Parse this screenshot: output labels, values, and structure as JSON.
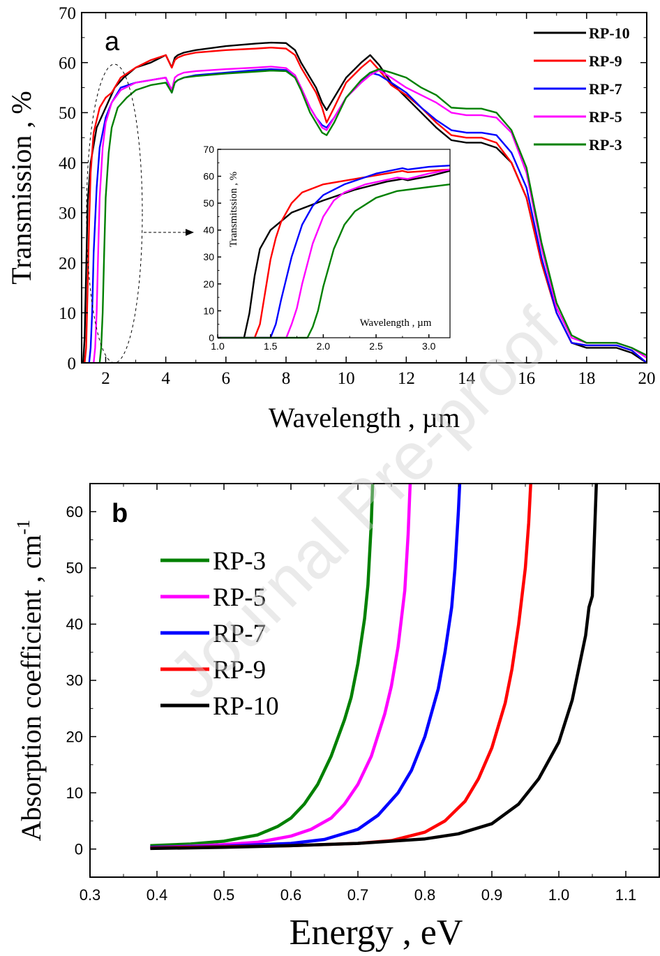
{
  "watermark": "Journal Pre-proof",
  "chart_data": [
    {
      "panel": "a",
      "type": "line",
      "xlabel": "Wavelength , µm",
      "ylabel": "Transmission , %",
      "xlim": [
        1.2,
        20
      ],
      "ylim": [
        0,
        70
      ],
      "xticks": [
        2,
        4,
        6,
        8,
        10,
        12,
        14,
        16,
        18,
        20
      ],
      "yticks": [
        0,
        10,
        20,
        30,
        40,
        50,
        60,
        70
      ],
      "grid": false,
      "legend_position": "top-right",
      "series": [
        {
          "name": "RP-10",
          "color": "#000000",
          "x": [
            1.25,
            1.3,
            1.35,
            1.4,
            1.5,
            1.7,
            2.0,
            2.3,
            2.6,
            3.0,
            3.5,
            4.0,
            4.2,
            4.3,
            4.4,
            4.6,
            5.0,
            6.0,
            7.0,
            7.5,
            8.0,
            8.3,
            8.5,
            8.8,
            9.0,
            9.2,
            9.35,
            9.6,
            10.0,
            10.5,
            10.8,
            11.1,
            11.5,
            12.0,
            12.5,
            13.0,
            13.5,
            14.0,
            14.5,
            15.0,
            15.5,
            16.0,
            16.5,
            17.0,
            17.5,
            18.0,
            18.5,
            19.0,
            19.5,
            20.0
          ],
          "y": [
            0,
            5,
            18,
            32,
            40,
            47,
            51,
            55,
            57,
            59,
            60,
            61.5,
            59,
            61,
            61.5,
            62,
            62.5,
            63.3,
            63.8,
            64.0,
            63.9,
            62.5,
            60,
            57,
            55,
            52,
            50.5,
            53,
            57,
            60,
            61.5,
            59.5,
            56,
            53,
            50,
            47,
            44.5,
            44,
            44,
            43,
            40,
            33,
            20,
            10,
            4,
            3,
            3,
            3,
            2,
            0
          ]
        },
        {
          "name": "RP-9",
          "color": "#ff0000",
          "x": [
            1.3,
            1.35,
            1.4,
            1.45,
            1.5,
            1.6,
            1.8,
            2.0,
            2.2,
            2.5,
            3.0,
            3.5,
            4.0,
            4.2,
            4.3,
            4.4,
            4.6,
            5.0,
            6.0,
            7.0,
            7.5,
            8.0,
            8.3,
            8.5,
            8.8,
            9.0,
            9.2,
            9.35,
            9.6,
            10.0,
            10.5,
            10.8,
            11.1,
            11.5,
            12.0,
            12.5,
            13.0,
            13.5,
            14.0,
            14.5,
            15.0,
            15.5,
            16.0,
            16.5,
            17.0,
            17.5,
            18.0,
            18.5,
            19.0,
            19.5,
            20.0
          ],
          "y": [
            0,
            3,
            15,
            28,
            38,
            46,
            51,
            53,
            54,
            57,
            59,
            60.5,
            61.5,
            59,
            60.5,
            61,
            61.5,
            62,
            62.5,
            62.8,
            63.0,
            62.8,
            61.5,
            59,
            56,
            54,
            51,
            48,
            51,
            56,
            59,
            60.5,
            58.5,
            55.5,
            53.5,
            51,
            48,
            45.5,
            45,
            45,
            44,
            40,
            33,
            20,
            10,
            4,
            3.5,
            3.5,
            3.5,
            2.5,
            0
          ]
        },
        {
          "name": "RP-7",
          "color": "#0000ff",
          "x": [
            1.45,
            1.5,
            1.55,
            1.6,
            1.7,
            1.8,
            2.0,
            2.2,
            2.5,
            3.0,
            3.5,
            4.0,
            4.2,
            4.3,
            4.4,
            4.6,
            5.0,
            6.0,
            7.0,
            7.5,
            8.0,
            8.3,
            8.5,
            8.8,
            9.0,
            9.2,
            9.35,
            9.6,
            10.0,
            10.5,
            10.8,
            11.1,
            11.5,
            12.0,
            12.5,
            13.0,
            13.5,
            14.0,
            14.5,
            15.0,
            15.5,
            16.0,
            16.5,
            17.0,
            17.5,
            18.0,
            18.5,
            19.0,
            19.5,
            20.0
          ],
          "y": [
            0,
            3,
            10,
            22,
            35,
            43,
            49,
            52,
            55,
            56,
            56.5,
            57,
            54,
            56,
            56.5,
            57,
            57.5,
            58,
            58.5,
            58.7,
            58.5,
            57,
            55,
            51,
            49,
            47.5,
            47,
            49,
            53,
            56,
            58,
            57.5,
            56,
            54,
            51,
            48.5,
            46.5,
            46,
            46,
            45.5,
            42,
            35,
            21,
            10,
            4,
            3.5,
            3.5,
            3.5,
            2.5,
            0
          ]
        },
        {
          "name": "RP-5",
          "color": "#ff00ff",
          "x": [
            1.6,
            1.65,
            1.7,
            1.75,
            1.8,
            1.9,
            2.0,
            2.2,
            2.5,
            3.0,
            3.5,
            4.0,
            4.2,
            4.3,
            4.4,
            4.6,
            5.0,
            6.0,
            7.0,
            7.5,
            8.0,
            8.3,
            8.5,
            8.8,
            9.0,
            9.2,
            9.35,
            9.6,
            10.0,
            10.5,
            10.8,
            11.1,
            11.5,
            12.0,
            12.5,
            13.0,
            13.5,
            14.0,
            14.5,
            15.0,
            15.5,
            16.0,
            16.5,
            17.0,
            17.5,
            18.0,
            18.5,
            19.0,
            19.5,
            20.0
          ],
          "y": [
            0,
            3,
            10,
            22,
            33,
            43,
            48,
            52,
            54.5,
            56,
            56.5,
            57,
            54.5,
            57,
            57.5,
            58,
            58.3,
            58.7,
            59.0,
            59.2,
            58.9,
            57.5,
            55,
            51,
            49,
            47,
            46.5,
            49,
            53,
            56,
            57.5,
            58.5,
            57,
            55,
            53.5,
            52,
            50,
            49.5,
            49.5,
            49,
            46,
            38,
            23,
            11,
            5,
            4,
            4,
            4,
            3,
            1
          ]
        },
        {
          "name": "RP-3",
          "color": "#008000",
          "x": [
            1.8,
            1.85,
            1.9,
            1.95,
            2.0,
            2.1,
            2.2,
            2.4,
            2.7,
            3.0,
            3.5,
            4.0,
            4.2,
            4.3,
            4.4,
            4.6,
            5.0,
            6.0,
            7.0,
            7.5,
            8.0,
            8.3,
            8.5,
            8.8,
            9.0,
            9.2,
            9.35,
            9.6,
            10.0,
            10.5,
            10.8,
            11.1,
            11.5,
            12.0,
            12.5,
            13.0,
            13.5,
            14.0,
            14.5,
            15.0,
            15.5,
            16.0,
            16.5,
            17.0,
            17.5,
            18.0,
            18.5,
            19.0,
            19.5,
            20.0
          ],
          "y": [
            0,
            3,
            10,
            22,
            33,
            42,
            47,
            51,
            53,
            54.5,
            55.5,
            56,
            54,
            56,
            56.5,
            57,
            57.3,
            57.8,
            58.2,
            58.4,
            58.3,
            57,
            54.5,
            50,
            48,
            46,
            45.5,
            48,
            53,
            56.5,
            58,
            58.7,
            58,
            57,
            55,
            53.5,
            51,
            50.8,
            50.8,
            50,
            46.5,
            39,
            24,
            12,
            5.5,
            4,
            4,
            4,
            3,
            1.5
          ]
        }
      ],
      "inset": {
        "xlabel": "Wavelength , µm",
        "ylabel": "Transmitssion , %",
        "xlim": [
          1.0,
          3.2
        ],
        "ylim": [
          0,
          70
        ],
        "xticks": [
          1.0,
          1.5,
          2.0,
          2.5,
          3.0
        ],
        "yticks": [
          0,
          10,
          20,
          30,
          40,
          50,
          60,
          70
        ],
        "series": [
          {
            "name": "RP-10",
            "color": "#000000",
            "x": [
              1.0,
              1.2,
              1.25,
              1.3,
              1.35,
              1.4,
              1.5,
              1.7,
              2.0,
              2.3,
              2.6,
              2.75,
              2.8,
              3.0,
              3.2
            ],
            "y": [
              0,
              0,
              0,
              9,
              23,
              33,
              40,
              46.5,
              51,
              55,
              58,
              59,
              58.5,
              60,
              62
            ]
          },
          {
            "name": "RP-9",
            "color": "#ff0000",
            "x": [
              1.0,
              1.35,
              1.4,
              1.45,
              1.5,
              1.55,
              1.6,
              1.7,
              1.8,
              2.0,
              2.3,
              2.6,
              2.75,
              2.8,
              3.0,
              3.2
            ],
            "y": [
              0,
              0,
              5,
              17,
              29,
              37,
              43,
              50,
              54,
              57,
              59,
              61,
              62,
              61.5,
              62,
              62.5
            ]
          },
          {
            "name": "RP-7",
            "color": "#0000ff",
            "x": [
              1.0,
              1.5,
              1.55,
              1.6,
              1.7,
              1.8,
              1.9,
              2.0,
              2.2,
              2.5,
              2.75,
              2.8,
              3.0,
              3.2
            ],
            "y": [
              0,
              0,
              5,
              14,
              30,
              42,
              49,
              53,
              57,
              61,
              63,
              62.5,
              63.5,
              64
            ]
          },
          {
            "name": "RP-5",
            "color": "#ff00ff",
            "x": [
              1.0,
              1.65,
              1.7,
              1.75,
              1.8,
              1.9,
              2.0,
              2.1,
              2.2,
              2.4,
              2.7,
              2.8,
              3.0,
              3.2
            ],
            "y": [
              0,
              0,
              5,
              11,
              20,
              35,
              45,
              51,
              54,
              57,
              59.5,
              59,
              61,
              62.5
            ]
          },
          {
            "name": "RP-3",
            "color": "#008000",
            "x": [
              1.0,
              1.85,
              1.9,
              1.95,
              2.0,
              2.1,
              2.2,
              2.3,
              2.5,
              2.7,
              3.0,
              3.2
            ],
            "y": [
              0,
              0,
              4,
              10,
              19,
              33,
              42,
              47,
              52,
              54.5,
              56,
              57
            ]
          }
        ]
      }
    },
    {
      "panel": "b",
      "type": "line",
      "xlabel": "Energy , eV",
      "ylabel": "Absorption coefficient , cm",
      "ylabel_sup": "-1",
      "xlim": [
        0.3,
        1.15
      ],
      "ylim": [
        -5,
        65
      ],
      "xticks": [
        0.3,
        0.4,
        0.5,
        0.6,
        0.7,
        0.8,
        0.9,
        1.0,
        1.1
      ],
      "yticks": [
        0,
        10,
        20,
        30,
        40,
        50,
        60
      ],
      "grid": false,
      "legend_position": "upper-left",
      "series": [
        {
          "name": "RP-3",
          "color": "#008000",
          "x": [
            0.39,
            0.45,
            0.5,
            0.55,
            0.58,
            0.6,
            0.62,
            0.64,
            0.66,
            0.68,
            0.69,
            0.7,
            0.71,
            0.715,
            0.72,
            0.722
          ],
          "y": [
            0.6,
            0.9,
            1.4,
            2.5,
            4,
            5.5,
            8,
            11.5,
            16.5,
            23,
            27,
            33,
            41,
            47,
            58,
            65
          ]
        },
        {
          "name": "RP-5",
          "color": "#ff00ff",
          "x": [
            0.39,
            0.45,
            0.5,
            0.55,
            0.6,
            0.63,
            0.66,
            0.68,
            0.7,
            0.72,
            0.74,
            0.75,
            0.76,
            0.77,
            0.775,
            0.778
          ],
          "y": [
            0.3,
            0.5,
            0.8,
            1.2,
            2.3,
            3.5,
            5.5,
            8,
            11.5,
            16.5,
            24,
            29,
            36,
            46,
            56,
            65
          ]
        },
        {
          "name": "RP-7",
          "color": "#0000ff",
          "x": [
            0.39,
            0.5,
            0.6,
            0.65,
            0.7,
            0.73,
            0.76,
            0.78,
            0.8,
            0.82,
            0.83,
            0.84,
            0.845,
            0.85,
            0.852
          ],
          "y": [
            0.3,
            0.5,
            1,
            1.7,
            3.5,
            6,
            10,
            14,
            20,
            28.5,
            35,
            43,
            50,
            60,
            65
          ]
        },
        {
          "name": "RP-9",
          "color": "#ff0000",
          "x": [
            0.39,
            0.5,
            0.6,
            0.7,
            0.75,
            0.8,
            0.83,
            0.86,
            0.88,
            0.9,
            0.92,
            0.93,
            0.94,
            0.95,
            0.955,
            0.958
          ],
          "y": [
            0.2,
            0.4,
            0.6,
            1,
            1.5,
            3,
            5,
            8.5,
            12.5,
            18,
            26,
            32,
            40,
            50,
            58,
            65
          ]
        },
        {
          "name": "RP-10",
          "color": "#000000",
          "x": [
            0.39,
            0.5,
            0.6,
            0.7,
            0.8,
            0.85,
            0.9,
            0.94,
            0.97,
            1.0,
            1.02,
            1.04,
            1.045,
            1.05,
            1.053,
            1.056
          ],
          "y": [
            0.1,
            0.3,
            0.6,
            1,
            1.8,
            2.7,
            4.5,
            8,
            12.5,
            19,
            26.5,
            38,
            43,
            45,
            55,
            65
          ]
        }
      ]
    }
  ]
}
